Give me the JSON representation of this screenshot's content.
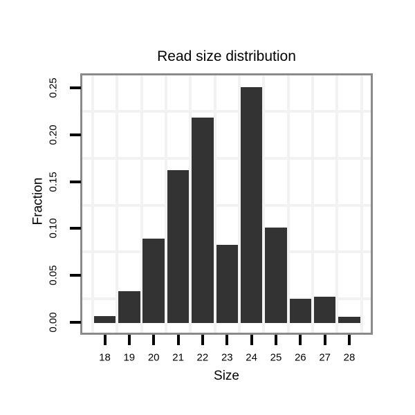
{
  "chart_data": {
    "type": "bar",
    "title": "Read size distribution",
    "xlabel": "Size",
    "ylabel": "Fraction",
    "categories": [
      18,
      19,
      20,
      21,
      22,
      23,
      24,
      25,
      26,
      27,
      28
    ],
    "values": [
      0.007,
      0.033,
      0.089,
      0.162,
      0.218,
      0.083,
      0.251,
      0.101,
      0.025,
      0.027,
      0.006
    ],
    "x_tick_labels": [
      "18",
      "19",
      "20",
      "21",
      "22",
      "23",
      "24",
      "25",
      "26",
      "27",
      "28"
    ],
    "y_tick_values": [
      0.0,
      0.05,
      0.1,
      0.15,
      0.2,
      0.25
    ],
    "y_tick_labels": [
      "0.00",
      "0.05",
      "0.10",
      "0.15",
      "0.20",
      "0.25"
    ],
    "xlim": [
      17.08,
      28.88
    ],
    "ylim": [
      -0.011,
      0.263
    ],
    "h_gridlines": [
      0.025,
      0.075,
      0.125,
      0.175,
      0.225
    ],
    "v_gridlines": [
      17.5,
      18.5,
      19.5,
      20.5,
      21.5,
      22.5,
      23.5,
      24.5,
      25.5,
      26.5,
      27.5,
      28.5
    ],
    "grid": "faint minor gridlines only, no legend",
    "legend": "none",
    "colors": {
      "bar": "#333333",
      "panel_border": "#8a8a8a",
      "grid": "#f2f2f2",
      "tick": "#000000",
      "text": "#000000",
      "background": "#ffffff"
    }
  }
}
